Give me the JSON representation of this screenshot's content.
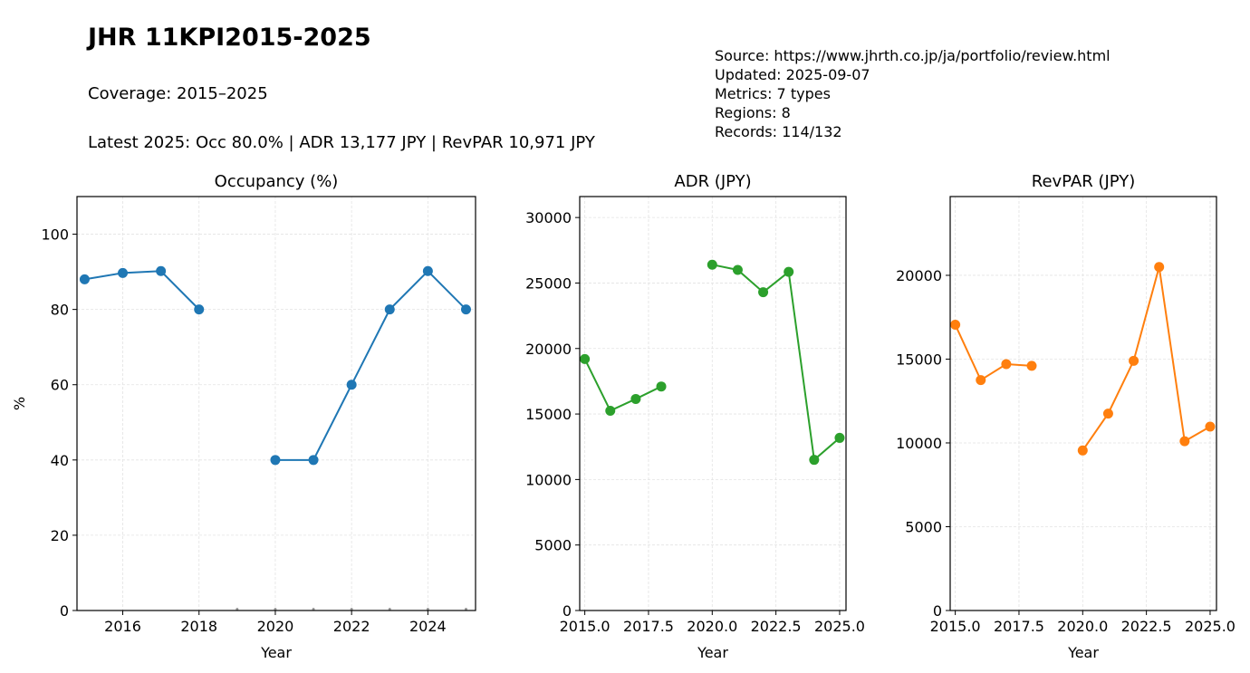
{
  "header": {
    "title": "JHR 11KPI2015-2025",
    "coverage": "Coverage: 2015–2025",
    "latest": "Latest 2025: Occ 80.0% | ADR 13,177 JPY | RevPAR 10,971 JPY"
  },
  "meta": {
    "source": "Source: https://www.jhrth.co.jp/ja/portfolio/review.html",
    "updated": "Updated: 2025-09-07",
    "metrics": "Metrics: 7 types",
    "regions": "Regions: 8",
    "records": "Records: 114/132"
  },
  "chart_data": [
    {
      "type": "line",
      "title": "Occupancy (%)",
      "xlabel": "Year",
      "ylabel": "%",
      "color": "#1f77b4",
      "xlim": [
        2014.8,
        2025.25
      ],
      "ylim": [
        0,
        110
      ],
      "xticks": [
        2016,
        2018,
        2020,
        2022,
        2024
      ],
      "xtick_labels": [
        "2016",
        "2018",
        "2020",
        "2022",
        "2024"
      ],
      "yticks": [
        0,
        20,
        40,
        60,
        80,
        100
      ],
      "ytick_labels": [
        "0",
        "20",
        "40",
        "60",
        "80",
        "100"
      ],
      "grid": true,
      "x": [
        2015,
        2016,
        2017,
        2018,
        2019,
        2020,
        2021,
        2022,
        2023,
        2024,
        2025
      ],
      "y": [
        88.0,
        89.7,
        90.2,
        80.0,
        null,
        40.0,
        40.0,
        60.0,
        80.0,
        90.2,
        80.0
      ],
      "missing_markers_x": [
        2019,
        2020,
        2021,
        2022,
        2023,
        2024,
        2025
      ]
    },
    {
      "type": "line",
      "title": "ADR (JPY)",
      "xlabel": "Year",
      "ylabel": "",
      "color": "#2ca02c",
      "xlim": [
        2014.8,
        2025.25
      ],
      "ylim": [
        0,
        31600
      ],
      "xticks": [
        2015,
        2017.5,
        2020,
        2022.5,
        2025
      ],
      "xtick_labels": [
        "2015.0",
        "2017.5",
        "2020.0",
        "2022.5",
        "2025.0"
      ],
      "yticks": [
        0,
        5000,
        10000,
        15000,
        20000,
        25000,
        30000
      ],
      "ytick_labels": [
        "0",
        "5000",
        "10000",
        "15000",
        "20000",
        "25000",
        "30000"
      ],
      "grid": true,
      "x": [
        2015,
        2016,
        2017,
        2018,
        2019,
        2020,
        2021,
        2022,
        2023,
        2024,
        2025
      ],
      "y": [
        19200,
        15250,
        16150,
        17100,
        null,
        26400,
        26000,
        24300,
        25850,
        11500,
        13177
      ]
    },
    {
      "type": "line",
      "title": "RevPAR (JPY)",
      "xlabel": "Year",
      "ylabel": "",
      "color": "#ff7f0e",
      "xlim": [
        2014.8,
        2025.25
      ],
      "ylim": [
        0,
        24700
      ],
      "xticks": [
        2015,
        2017.5,
        2020,
        2022.5,
        2025
      ],
      "xtick_labels": [
        "2015.0",
        "2017.5",
        "2020.0",
        "2022.5",
        "2025.0"
      ],
      "yticks": [
        0,
        5000,
        10000,
        15000,
        20000
      ],
      "ytick_labels": [
        "0",
        "5000",
        "10000",
        "15000",
        "20000"
      ],
      "grid": true,
      "x": [
        2015,
        2016,
        2017,
        2018,
        2019,
        2020,
        2021,
        2022,
        2023,
        2024,
        2025
      ],
      "y": [
        17050,
        13750,
        14700,
        14600,
        null,
        9550,
        11750,
        14900,
        20500,
        10100,
        10971
      ]
    }
  ]
}
